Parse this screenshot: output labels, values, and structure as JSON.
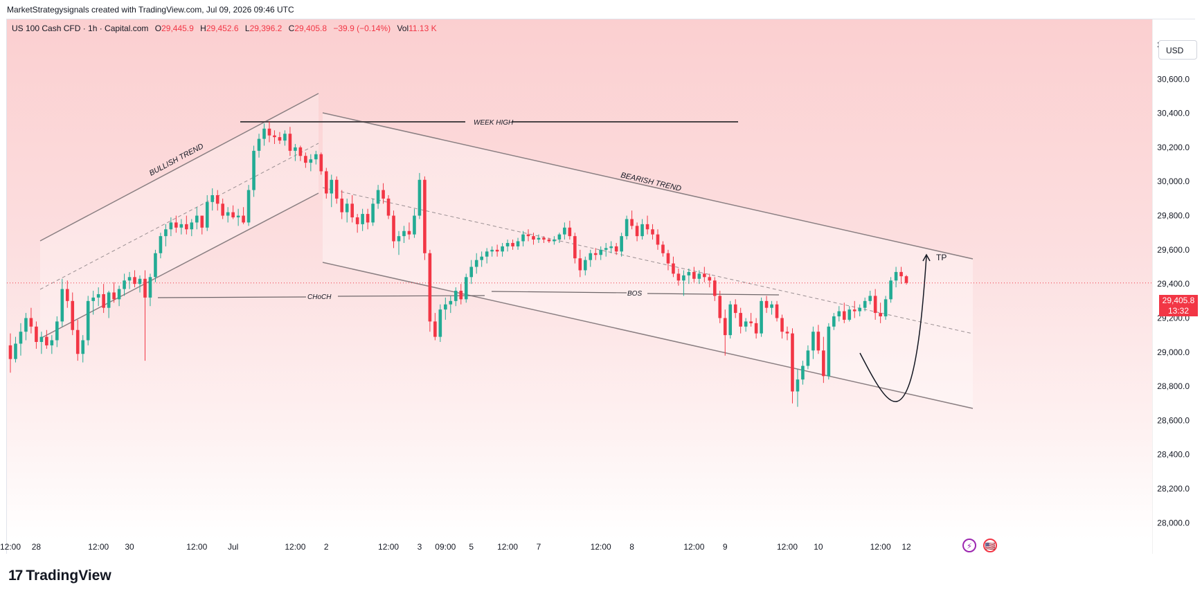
{
  "header": {
    "caption": "MarketStrategysignals created with TradingView.com, Jul 09, 2026 09:46 UTC"
  },
  "legend": {
    "symbol": "US 100 Cash CFD · 1h · Capital.com",
    "o_label": "O",
    "o": "29,445.9",
    "h_label": "H",
    "h": "29,452.6",
    "l_label": "L",
    "l": "29,396.2",
    "c_label": "C",
    "c": "29,405.8",
    "change": "−39.9 (−0.14%)",
    "vol_label": "Vol",
    "vol": "11.13 K"
  },
  "currency_button": "USD",
  "last_price": {
    "price": "29,405.8",
    "countdown": "13:32",
    "value": 29405.8
  },
  "brand": {
    "name": "TradingView",
    "mark": "17"
  },
  "event_icons": [
    {
      "icon": "lightning-icon",
      "glyph": "⚡"
    },
    {
      "icon": "us-flag-icon",
      "glyph": "🇺🇸"
    }
  ],
  "colors": {
    "up": "#22ab94",
    "down": "#f23645",
    "line": "#7b6f72",
    "dark_line": "#4a4346",
    "last_price": "#f23645"
  },
  "chart_data": {
    "type": "candlestick",
    "timeframe": "1h",
    "ylim": [
      27900,
      30950
    ],
    "y_ticks": [
      {
        "value": 28000,
        "label": "28,000.0"
      },
      {
        "value": 28200,
        "label": "28,200.0"
      },
      {
        "value": 28400,
        "label": "28,400.0"
      },
      {
        "value": 28600,
        "label": "28,600.0"
      },
      {
        "value": 28800,
        "label": "28,800.0"
      },
      {
        "value": 29000,
        "label": "29,000.0"
      },
      {
        "value": 29200,
        "label": "29,200.0"
      },
      {
        "value": 29400,
        "label": "29,400.0"
      },
      {
        "value": 29600,
        "label": "29,600.0"
      },
      {
        "value": 29800,
        "label": "29,800.0"
      },
      {
        "value": 30000,
        "label": "30,000.0"
      },
      {
        "value": 30200,
        "label": "30,200.0"
      },
      {
        "value": 30400,
        "label": "30,400.0"
      },
      {
        "value": 30600,
        "label": "30,600.0"
      },
      {
        "value": 30800,
        "label": "30,800.0"
      }
    ],
    "x_ticks": [
      {
        "label": "12:00",
        "bar": 0
      },
      {
        "label": "28",
        "bar": 5
      },
      {
        "label": "12:00",
        "bar": 17
      },
      {
        "label": "30",
        "bar": 23
      },
      {
        "label": "12:00",
        "bar": 36
      },
      {
        "label": "Jul",
        "bar": 43
      },
      {
        "label": "12:00",
        "bar": 55
      },
      {
        "label": "2",
        "bar": 61
      },
      {
        "label": "12:00",
        "bar": 73
      },
      {
        "label": "3",
        "bar": 79
      },
      {
        "label": "09:00",
        "bar": 84
      },
      {
        "label": "5",
        "bar": 89
      },
      {
        "label": "12:00",
        "bar": 96
      },
      {
        "label": "7",
        "bar": 102
      },
      {
        "label": "12:00",
        "bar": 114
      },
      {
        "label": "8",
        "bar": 120
      },
      {
        "label": "12:00",
        "bar": 132
      },
      {
        "label": "9",
        "bar": 138
      },
      {
        "label": "12:00",
        "bar": 150
      },
      {
        "label": "10",
        "bar": 156
      },
      {
        "label": "12:00",
        "bar": 168
      },
      {
        "label": "12",
        "bar": 173
      }
    ],
    "candles": [
      [
        29040,
        29110,
        28880,
        28960
      ],
      [
        28960,
        29090,
        28940,
        29050
      ],
      [
        29050,
        29170,
        28980,
        29120
      ],
      [
        29120,
        29230,
        29070,
        29200
      ],
      [
        29200,
        29260,
        29110,
        29150
      ],
      [
        29150,
        29180,
        29020,
        29060
      ],
      [
        29060,
        29120,
        28990,
        29090
      ],
      [
        29090,
        29130,
        29020,
        29040
      ],
      [
        29040,
        29100,
        28990,
        29070
      ],
      [
        29070,
        29210,
        29030,
        29180
      ],
      [
        29180,
        29430,
        29150,
        29370
      ],
      [
        29370,
        29420,
        29260,
        29300
      ],
      [
        29300,
        29350,
        29100,
        29130
      ],
      [
        29130,
        29190,
        28950,
        28990
      ],
      [
        28990,
        29100,
        28940,
        29070
      ],
      [
        29070,
        29330,
        29040,
        29300
      ],
      [
        29300,
        29360,
        29220,
        29320
      ],
      [
        29320,
        29380,
        29270,
        29340
      ],
      [
        29340,
        29400,
        29230,
        29260
      ],
      [
        29260,
        29360,
        29200,
        29350
      ],
      [
        29350,
        29410,
        29290,
        29310
      ],
      [
        29310,
        29390,
        29270,
        29370
      ],
      [
        29370,
        29460,
        29330,
        29420
      ],
      [
        29420,
        29470,
        29370,
        29440
      ],
      [
        29440,
        29480,
        29380,
        29400
      ],
      [
        29400,
        29450,
        29350,
        29430
      ],
      [
        29430,
        29480,
        28950,
        29320
      ],
      [
        29320,
        29460,
        29270,
        29440
      ],
      [
        29440,
        29600,
        29410,
        29580
      ],
      [
        29580,
        29700,
        29550,
        29680
      ],
      [
        29680,
        29750,
        29620,
        29720
      ],
      [
        29720,
        29790,
        29680,
        29760
      ],
      [
        29760,
        29800,
        29700,
        29730
      ],
      [
        29730,
        29780,
        29690,
        29750
      ],
      [
        29750,
        29800,
        29690,
        29720
      ],
      [
        29720,
        29780,
        29680,
        29760
      ],
      [
        29760,
        29850,
        29720,
        29800
      ],
      [
        29800,
        29790,
        29690,
        29730
      ],
      [
        29730,
        29920,
        29710,
        29880
      ],
      [
        29880,
        29960,
        29830,
        29920
      ],
      [
        29920,
        29950,
        29830,
        29870
      ],
      [
        29870,
        29900,
        29780,
        29800
      ],
      [
        29800,
        29850,
        29760,
        29820
      ],
      [
        29820,
        29860,
        29780,
        29790
      ],
      [
        29790,
        29840,
        29740,
        29800
      ],
      [
        29800,
        29850,
        29750,
        29760
      ],
      [
        29760,
        29980,
        29740,
        29950
      ],
      [
        29950,
        30210,
        29910,
        30180
      ],
      [
        30180,
        30280,
        30140,
        30250
      ],
      [
        30250,
        30340,
        30210,
        30310
      ],
      [
        30310,
        30350,
        30230,
        30270
      ],
      [
        30270,
        30300,
        30220,
        30260
      ],
      [
        30260,
        30290,
        30220,
        30240
      ],
      [
        30240,
        30300,
        30210,
        30280
      ],
      [
        30280,
        30320,
        30150,
        30180
      ],
      [
        30180,
        30220,
        30120,
        30200
      ],
      [
        30200,
        30210,
        30120,
        30150
      ],
      [
        30150,
        30170,
        30080,
        30110
      ],
      [
        30110,
        30160,
        30060,
        30130
      ],
      [
        30130,
        30180,
        30100,
        30160
      ],
      [
        30160,
        30170,
        30040,
        30060
      ],
      [
        30060,
        30080,
        29900,
        29930
      ],
      [
        29930,
        30040,
        29850,
        30010
      ],
      [
        30010,
        30030,
        29870,
        29900
      ],
      [
        29900,
        29950,
        29780,
        29820
      ],
      [
        29820,
        29900,
        29760,
        29870
      ],
      [
        29870,
        29920,
        29760,
        29790
      ],
      [
        29790,
        29810,
        29700,
        29750
      ],
      [
        29750,
        29840,
        29710,
        29810
      ],
      [
        29810,
        29840,
        29720,
        29760
      ],
      [
        29760,
        29900,
        29740,
        29870
      ],
      [
        29870,
        29980,
        29840,
        29950
      ],
      [
        29950,
        29990,
        29870,
        29900
      ],
      [
        29900,
        29920,
        29780,
        29800
      ],
      [
        29800,
        29830,
        29610,
        29650
      ],
      [
        29650,
        29710,
        29570,
        29680
      ],
      [
        29680,
        29740,
        29640,
        29710
      ],
      [
        29710,
        29760,
        29660,
        29690
      ],
      [
        29690,
        29840,
        29670,
        29800
      ],
      [
        29800,
        30050,
        29780,
        30010
      ],
      [
        30010,
        30030,
        29540,
        29580
      ],
      [
        29580,
        29600,
        29120,
        29180
      ],
      [
        29180,
        29230,
        29070,
        29090
      ],
      [
        29090,
        29280,
        29060,
        29250
      ],
      [
        29250,
        29320,
        29190,
        29280
      ],
      [
        29280,
        29330,
        29230,
        29300
      ],
      [
        29300,
        29380,
        29270,
        29360
      ],
      [
        29360,
        29400,
        29280,
        29310
      ],
      [
        29310,
        29460,
        29290,
        29440
      ],
      [
        29440,
        29540,
        29400,
        29500
      ],
      [
        29500,
        29580,
        29460,
        29540
      ],
      [
        29540,
        29590,
        29500,
        29560
      ],
      [
        29560,
        29610,
        29520,
        29590
      ],
      [
        29590,
        29620,
        29560,
        29600
      ],
      [
        29600,
        29630,
        29560,
        29590
      ],
      [
        29590,
        29640,
        29560,
        29620
      ],
      [
        29620,
        29660,
        29590,
        29640
      ],
      [
        29640,
        29660,
        29600,
        29620
      ],
      [
        29620,
        29670,
        29600,
        29650
      ],
      [
        29650,
        29710,
        29620,
        29690
      ],
      [
        29690,
        29720,
        29650,
        29680
      ],
      [
        29680,
        29700,
        29630,
        29660
      ],
      [
        29660,
        29690,
        29640,
        29670
      ],
      [
        29670,
        29680,
        29640,
        29660
      ],
      [
        29660,
        29670,
        29640,
        29650
      ],
      [
        29650,
        29680,
        29630,
        29660
      ],
      [
        29660,
        29700,
        29640,
        29690
      ],
      [
        29690,
        29760,
        29660,
        29730
      ],
      [
        29730,
        29770,
        29660,
        29680
      ],
      [
        29680,
        29700,
        29520,
        29550
      ],
      [
        29550,
        29600,
        29440,
        29480
      ],
      [
        29480,
        29560,
        29450,
        29540
      ],
      [
        29540,
        29600,
        29500,
        29580
      ],
      [
        29580,
        29610,
        29540,
        29570
      ],
      [
        29570,
        29620,
        29540,
        29600
      ],
      [
        29600,
        29640,
        29560,
        29610
      ],
      [
        29610,
        29650,
        29580,
        29620
      ],
      [
        29620,
        29640,
        29570,
        29590
      ],
      [
        29590,
        29700,
        29560,
        29680
      ],
      [
        29680,
        29800,
        29660,
        29780
      ],
      [
        29780,
        29830,
        29720,
        29740
      ],
      [
        29740,
        29760,
        29650,
        29680
      ],
      [
        29680,
        29780,
        29660,
        29750
      ],
      [
        29750,
        29800,
        29690,
        29720
      ],
      [
        29720,
        29750,
        29660,
        29690
      ],
      [
        29690,
        29720,
        29600,
        29630
      ],
      [
        29630,
        29650,
        29560,
        29580
      ],
      [
        29580,
        29600,
        29480,
        29520
      ],
      [
        29520,
        29560,
        29440,
        29460
      ],
      [
        29460,
        29490,
        29390,
        29420
      ],
      [
        29420,
        29480,
        29330,
        29450
      ],
      [
        29450,
        29490,
        29400,
        29470
      ],
      [
        29470,
        29500,
        29410,
        29430
      ],
      [
        29430,
        29480,
        29400,
        29460
      ],
      [
        29460,
        29500,
        29410,
        29440
      ],
      [
        29440,
        29460,
        29380,
        29420
      ],
      [
        29420,
        29440,
        29300,
        29330
      ],
      [
        29330,
        29360,
        29170,
        29200
      ],
      [
        29200,
        29250,
        28980,
        29100
      ],
      [
        29100,
        29300,
        29080,
        29280
      ],
      [
        29280,
        29310,
        29200,
        29230
      ],
      [
        29230,
        29260,
        29110,
        29150
      ],
      [
        29150,
        29200,
        29120,
        29180
      ],
      [
        29180,
        29230,
        29150,
        29170
      ],
      [
        29170,
        29200,
        29080,
        29110
      ],
      [
        29110,
        29320,
        29090,
        29300
      ],
      [
        29300,
        29330,
        29230,
        29260
      ],
      [
        29260,
        29300,
        29220,
        29280
      ],
      [
        29280,
        29300,
        29180,
        29200
      ],
      [
        29200,
        29220,
        29080,
        29120
      ],
      [
        29120,
        29150,
        29070,
        29110
      ],
      [
        29110,
        29140,
        28700,
        28770
      ],
      [
        28770,
        28900,
        28680,
        28840
      ],
      [
        28840,
        28950,
        28810,
        28920
      ],
      [
        28920,
        29040,
        28900,
        29010
      ],
      [
        29010,
        29150,
        28960,
        29120
      ],
      [
        29120,
        29160,
        28990,
        29010
      ],
      [
        29010,
        29090,
        28820,
        28860
      ],
      [
        28860,
        29170,
        28840,
        29150
      ],
      [
        29150,
        29230,
        29130,
        29210
      ],
      [
        29210,
        29270,
        29180,
        29240
      ],
      [
        29240,
        29290,
        29170,
        29190
      ],
      [
        29190,
        29270,
        29180,
        29250
      ],
      [
        29250,
        29300,
        29200,
        29240
      ],
      [
        29240,
        29280,
        29210,
        29260
      ],
      [
        29260,
        29320,
        29240,
        29300
      ],
      [
        29300,
        29360,
        29280,
        29330
      ],
      [
        29330,
        29370,
        29190,
        29230
      ],
      [
        29230,
        29290,
        29170,
        29210
      ],
      [
        29210,
        29330,
        29190,
        29310
      ],
      [
        29310,
        29440,
        29290,
        29420
      ],
      [
        29420,
        29500,
        29380,
        29470
      ],
      [
        29470,
        29500,
        29400,
        29445
      ],
      [
        29445,
        29452,
        29396,
        29405.8
      ]
    ]
  },
  "annotations": [
    {
      "name": "bullish-trend-label",
      "text": "BULLISH TREND"
    },
    {
      "name": "bearish-trend-label",
      "text": "BEARISH TREND"
    },
    {
      "name": "week-high-label",
      "text": "WEEK  HIGH"
    },
    {
      "name": "choch-label",
      "text": "CHoCH"
    },
    {
      "name": "bos-label",
      "text": "BOS"
    },
    {
      "name": "tp-label",
      "text": "TP"
    }
  ]
}
